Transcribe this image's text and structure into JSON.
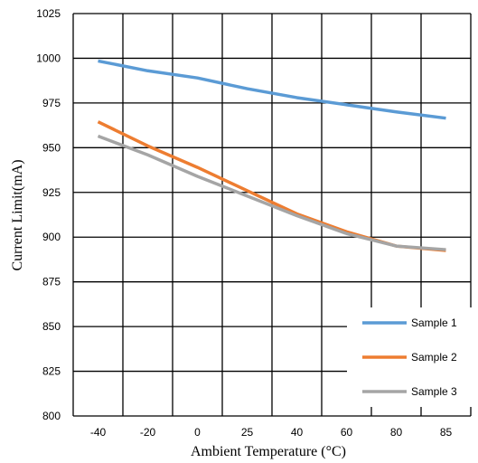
{
  "chart_data": {
    "type": "line",
    "xlabel": "Ambient Temperature  (°C)",
    "ylabel": "Current  Limit(mA)",
    "categories": [
      "-40",
      "-20",
      "0",
      "25",
      "40",
      "60",
      "80",
      "85"
    ],
    "x": [
      -40,
      -20,
      0,
      25,
      40,
      60,
      80,
      85
    ],
    "ylim": [
      800,
      1025
    ],
    "yticks": [
      800,
      825,
      850,
      875,
      900,
      925,
      950,
      975,
      1000,
      1025
    ],
    "grid": true,
    "legend_position": "bottom-right",
    "series": [
      {
        "name": "Sample 1",
        "color": "#5B9BD5",
        "values": [
          998.5,
          993,
          989,
          983,
          978,
          974,
          970,
          966.5
        ]
      },
      {
        "name": "Sample 2",
        "color": "#ED7D31",
        "values": [
          964.5,
          951,
          939,
          926,
          913,
          903,
          895,
          892.5
        ]
      },
      {
        "name": "Sample 3",
        "color": "#A5A5A5",
        "values": [
          956.5,
          946,
          934,
          923,
          912,
          902,
          895,
          893
        ]
      }
    ]
  }
}
